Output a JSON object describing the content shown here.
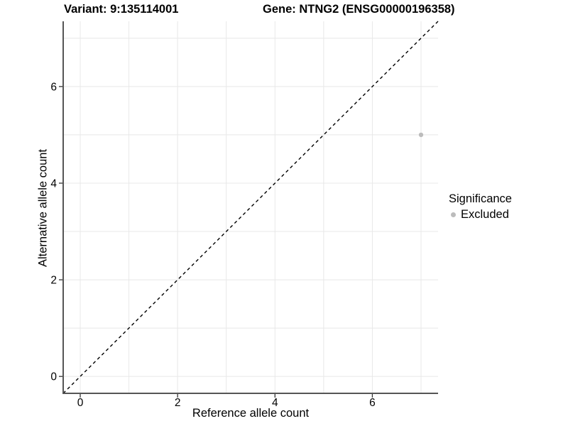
{
  "chart_data": {
    "type": "scatter",
    "title_left": "Variant: 9:135114001",
    "title_right": "Gene: NTNG2 (ENSG00000196358)",
    "xlabel": "Reference allele count",
    "ylabel": "Alternative allele count",
    "xlim": [
      -0.35,
      7.35
    ],
    "ylim": [
      -0.35,
      7.35
    ],
    "x_ticks": [
      0,
      2,
      4,
      6
    ],
    "y_ticks": [
      0,
      2,
      4,
      6
    ],
    "gridlines_x": [
      0,
      1,
      2,
      3,
      4,
      5,
      6,
      7
    ],
    "gridlines_y": [
      0,
      1,
      2,
      3,
      4,
      5,
      6,
      7
    ],
    "grid": true,
    "points": [
      {
        "x": 7,
        "y": 5,
        "significance": "Excluded"
      }
    ],
    "identity_line": {
      "equation": "y = x",
      "style": "dashed",
      "color": "#000000"
    },
    "legend": {
      "title": "Significance",
      "position": "right",
      "items": [
        {
          "label": "Excluded",
          "color": "#bcbcbc"
        }
      ]
    },
    "colors": {
      "point_excluded": "#bcbcbc",
      "grid": "#e8e8e8",
      "axis": "#555555",
      "tick": "#333333",
      "text": "#000000",
      "background": "#ffffff"
    }
  }
}
